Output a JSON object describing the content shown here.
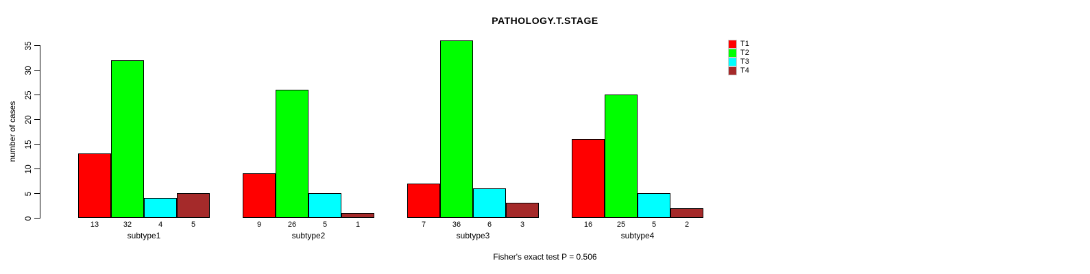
{
  "chart_data": {
    "type": "bar",
    "title": "PATHOLOGY.T.STAGE",
    "ylabel": "number of cases",
    "footer": "Fisher's exact test P = 0.506",
    "categories": [
      "subtype1",
      "subtype2",
      "subtype3",
      "subtype4"
    ],
    "series": [
      {
        "name": "T1",
        "color": "#FF0000",
        "values": [
          13,
          9,
          7,
          16
        ]
      },
      {
        "name": "T2",
        "color": "#00FF00",
        "values": [
          32,
          26,
          36,
          25
        ]
      },
      {
        "name": "T3",
        "color": "#00FFFF",
        "values": [
          4,
          5,
          6,
          5
        ]
      },
      {
        "name": "T4",
        "color": "#A52A2A",
        "values": [
          5,
          1,
          3,
          2
        ]
      }
    ],
    "yticks": [
      0,
      5,
      10,
      15,
      20,
      25,
      30,
      35
    ],
    "ylim": [
      0,
      35
    ],
    "grid": false,
    "legend_position": "top-right",
    "bar_value_labels": true
  }
}
